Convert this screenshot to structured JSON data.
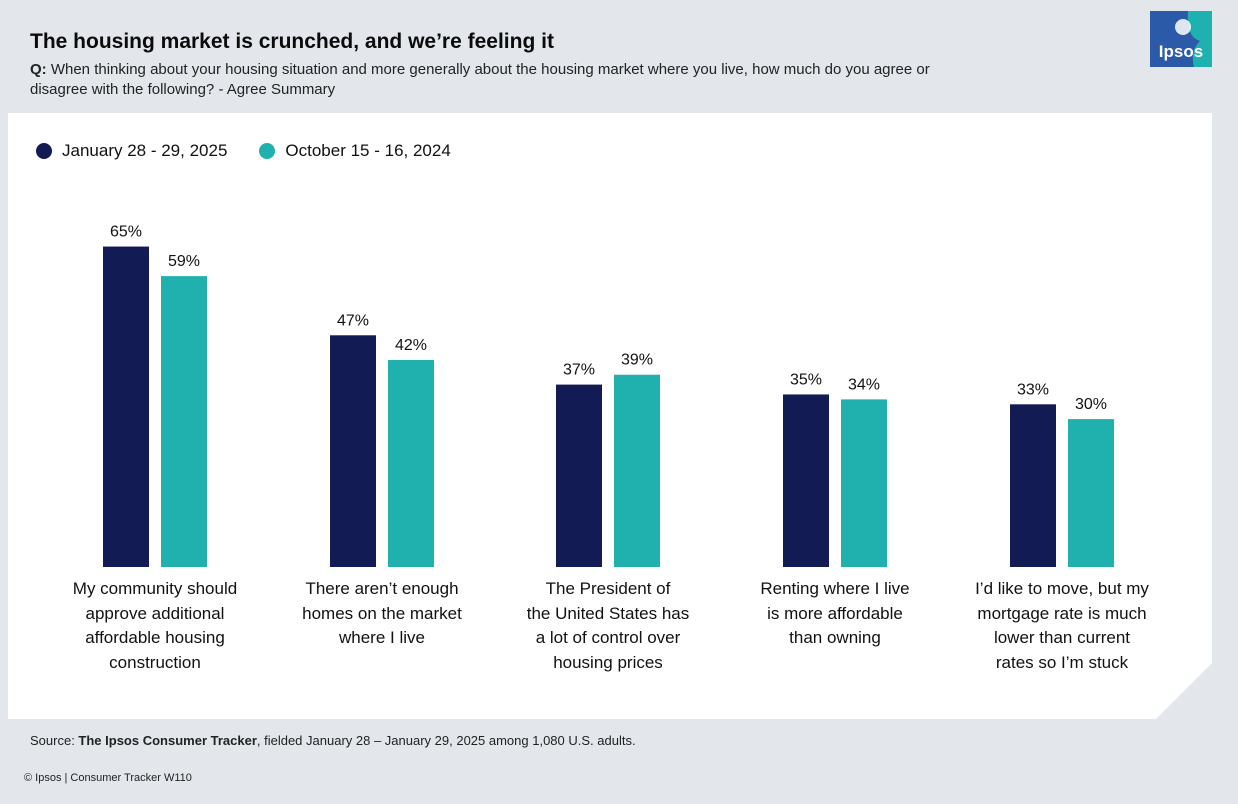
{
  "header": {
    "title": "The housing market is crunched, and we’re feeling it",
    "question_label": "Q:",
    "question_text": "When thinking about your housing situation and more generally about the housing market where you live, how much do you agree or disagree with the following? - Agree Summary"
  },
  "logo": {
    "text": "Ipsos",
    "color": "#2a5aa8",
    "accent": "#1fb1b0"
  },
  "chart_data": {
    "type": "bar",
    "title": "The housing market is crunched, and we’re feeling it",
    "xlabel": "",
    "ylabel": "",
    "ylim": [
      0,
      70
    ],
    "legend_position": "top-left",
    "categories": [
      "My community should approve additional affordable housing construction",
      "There aren’t enough homes on the market where I live",
      "The President of the United States has a lot of control over housing prices",
      "Renting where I live is more affordable than owning",
      "I’d like to move, but my mortgage rate is much lower than current rates so I’m stuck"
    ],
    "category_lines": [
      [
        "My community should",
        "approve additional",
        "affordable housing",
        "construction"
      ],
      [
        "There aren’t enough",
        "homes on the market",
        "where I live"
      ],
      [
        "The President of",
        "the United States has",
        "a lot of control over",
        "housing prices"
      ],
      [
        "Renting where I live",
        "is more affordable",
        "than owning"
      ],
      [
        "I’d like to move, but my",
        "mortgage rate is much",
        "lower than current",
        "rates so I’m stuck"
      ]
    ],
    "series": [
      {
        "name": "January 28 - 29, 2025",
        "color": "#131b55",
        "values": [
          65,
          47,
          37,
          35,
          33
        ],
        "labels": [
          "65%",
          "47%",
          "37%",
          "35%",
          "33%"
        ]
      },
      {
        "name": "October 15 - 16, 2024",
        "color": "#20b0ad",
        "values": [
          59,
          42,
          39,
          34,
          30
        ],
        "labels": [
          "59%",
          "42%",
          "39%",
          "34%",
          "30%"
        ]
      }
    ]
  },
  "source": {
    "prefix": "Source: ",
    "name": "The Ipsos Consumer Tracker",
    "suffix": ", fielded January 28 – January 29, 2025 among 1,080 U.S. adults."
  },
  "footer": {
    "text": "© Ipsos | Consumer Tracker W110"
  }
}
